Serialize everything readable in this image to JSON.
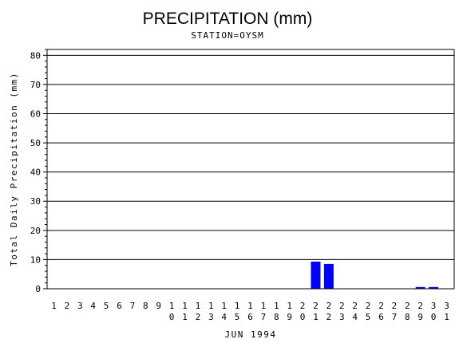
{
  "chart_data": {
    "type": "bar",
    "title": "PRECIPITATION (mm)",
    "subtitle": "STATION=OYSM",
    "xlabel": "JUN 1994",
    "ylabel": "Total Daily Precipitation (mm)",
    "ylim": [
      0,
      82
    ],
    "yticks": [
      0,
      10,
      20,
      30,
      40,
      50,
      60,
      70,
      80
    ],
    "grid": true,
    "bar_color": "#0000ff",
    "categories": [
      "1",
      "2",
      "3",
      "4",
      "5",
      "6",
      "7",
      "8",
      "9",
      "10",
      "11",
      "12",
      "13",
      "14",
      "15",
      "16",
      "17",
      "18",
      "19",
      "20",
      "21",
      "22",
      "23",
      "24",
      "25",
      "26",
      "27",
      "28",
      "29",
      "30",
      "31"
    ],
    "values": [
      0,
      0,
      0,
      0,
      0,
      0,
      0,
      0,
      0,
      0,
      0,
      0,
      0,
      0,
      0,
      0,
      0,
      0,
      0,
      0,
      9.3,
      8.5,
      0,
      0,
      0,
      0,
      0,
      0,
      0.6,
      0.6,
      null
    ]
  }
}
